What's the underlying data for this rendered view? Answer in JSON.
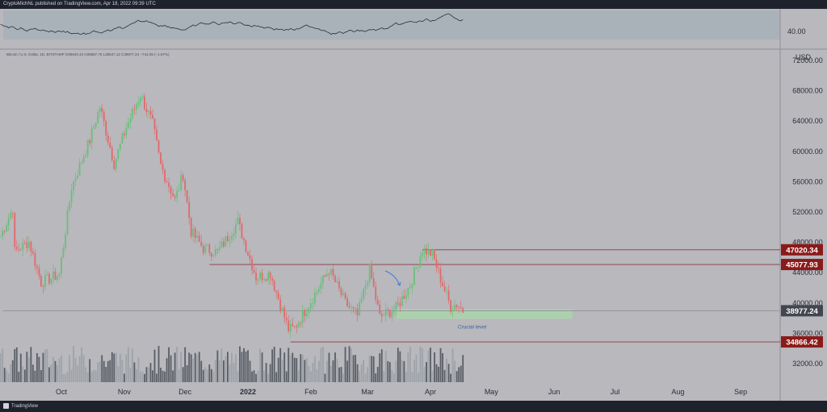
{
  "header": {
    "publisher_line": "CryptoMichNL published on TradingView.com, Apr 18, 2022 09:39 UTC"
  },
  "symbol_line": "Bitcoin / U.S. Dollar, 1D, BITSTAMP  O39640.42  H39887.75  L38547.12  C38977.24  −744.05 (−1.87%)",
  "footer": {
    "brand": "TradingView"
  },
  "colors": {
    "up": "#6abf7a",
    "down": "#e06a6a",
    "support_zone": "#a8d8a8",
    "resistance_tag": "#8b1a1a",
    "price_tag": "#434651"
  },
  "chart_data": {
    "type": "candlestick",
    "symbol": "Bitcoin / U.S. Dollar",
    "interval": "1D",
    "exchange": "BITSTAMP",
    "ohlc_last": {
      "open": 39640.42,
      "high": 39887.75,
      "low": 38547.12,
      "close": 38977.24,
      "change": -744.05,
      "change_pct": -1.87
    },
    "currency": "USD",
    "ylim": [
      29000,
      74000
    ],
    "y_ticks": [
      32000,
      36000,
      40000,
      44000,
      48000,
      52000,
      56000,
      60000,
      64000,
      68000,
      72000
    ],
    "x_tick_labels": [
      "Oct",
      "Nov",
      "Dec",
      "2022",
      "Feb",
      "Mar",
      "Apr",
      "May",
      "Jun",
      "Jul",
      "Aug",
      "Sep"
    ],
    "price_levels": [
      {
        "label": "47020.34",
        "value": 47020.34
      },
      {
        "label": "45077.93",
        "value": 45077.93
      },
      {
        "label": "38977.24",
        "value": 38977.24
      },
      {
        "label": "34866.42",
        "value": 34866.42
      }
    ],
    "support_zone": {
      "low": 37900,
      "high": 39200,
      "label": "Crucial level"
    },
    "oscillator": {
      "ref_label": "40.00"
    },
    "series": [
      {
        "date": "2021-09-01",
        "close": 48800
      },
      {
        "date": "2021-09-07",
        "close": 52500
      },
      {
        "date": "2021-09-08",
        "close": 46800
      },
      {
        "date": "2021-09-15",
        "close": 48100
      },
      {
        "date": "2021-09-21",
        "close": 42700
      },
      {
        "date": "2021-09-30",
        "close": 43800
      },
      {
        "date": "2021-10-06",
        "close": 55300
      },
      {
        "date": "2021-10-15",
        "close": 61500
      },
      {
        "date": "2021-10-20",
        "close": 65900
      },
      {
        "date": "2021-10-27",
        "close": 58400
      },
      {
        "date": "2021-11-02",
        "close": 63200
      },
      {
        "date": "2021-11-09",
        "close": 67500
      },
      {
        "date": "2021-11-15",
        "close": 63600
      },
      {
        "date": "2021-11-19",
        "close": 58100
      },
      {
        "date": "2021-11-26",
        "close": 53600
      },
      {
        "date": "2021-11-30",
        "close": 57000
      },
      {
        "date": "2021-12-04",
        "close": 49400
      },
      {
        "date": "2021-12-10",
        "close": 47200
      },
      {
        "date": "2021-12-17",
        "close": 46700
      },
      {
        "date": "2021-12-27",
        "close": 50700
      },
      {
        "date": "2022-01-05",
        "close": 43400
      },
      {
        "date": "2022-01-12",
        "close": 43900
      },
      {
        "date": "2022-01-21",
        "close": 36500
      },
      {
        "date": "2022-01-24",
        "close": 36700
      },
      {
        "date": "2022-02-04",
        "close": 41600
      },
      {
        "date": "2022-02-10",
        "close": 44400
      },
      {
        "date": "2022-02-18",
        "close": 40000
      },
      {
        "date": "2022-02-24",
        "close": 38300
      },
      {
        "date": "2022-03-02",
        "close": 44400
      },
      {
        "date": "2022-03-07",
        "close": 38100
      },
      {
        "date": "2022-03-15",
        "close": 39300
      },
      {
        "date": "2022-03-22",
        "close": 42400
      },
      {
        "date": "2022-03-28",
        "close": 47100
      },
      {
        "date": "2022-04-02",
        "close": 46400
      },
      {
        "date": "2022-04-06",
        "close": 43200
      },
      {
        "date": "2022-04-11",
        "close": 39500
      },
      {
        "date": "2022-04-14",
        "close": 39900
      },
      {
        "date": "2022-04-17",
        "close": 38977
      }
    ]
  }
}
